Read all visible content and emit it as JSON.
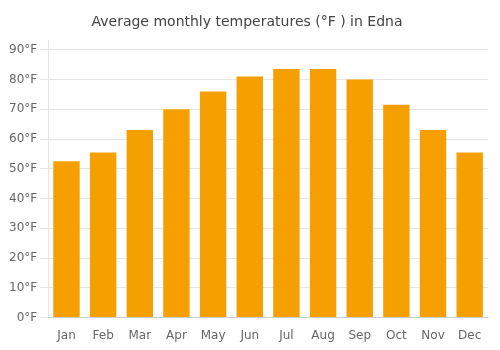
{
  "chart_data": {
    "type": "bar",
    "title": "Average monthly temperatures (°F ) in Edna",
    "categories": [
      "Jan",
      "Feb",
      "Mar",
      "Apr",
      "May",
      "Jun",
      "Jul",
      "Aug",
      "Sep",
      "Oct",
      "Nov",
      "Dec"
    ],
    "values": [
      52.5,
      55.5,
      63,
      70,
      76,
      81,
      83.5,
      83.5,
      80,
      71.5,
      63,
      55.5
    ],
    "color": "#F5A000",
    "ylim": [
      0,
      93
    ],
    "yticks": [
      {
        "value": 0,
        "label": "0°F"
      },
      {
        "value": 10,
        "label": "10°F"
      },
      {
        "value": 20,
        "label": "20°F"
      },
      {
        "value": 30,
        "label": "30°F"
      },
      {
        "value": 40,
        "label": "40°F"
      },
      {
        "value": 50,
        "label": "50°F"
      },
      {
        "value": 60,
        "label": "60°F"
      },
      {
        "value": 70,
        "label": "70°F"
      },
      {
        "value": 80,
        "label": "80°F"
      },
      {
        "value": 90,
        "label": "90°F"
      }
    ],
    "grid": true
  }
}
